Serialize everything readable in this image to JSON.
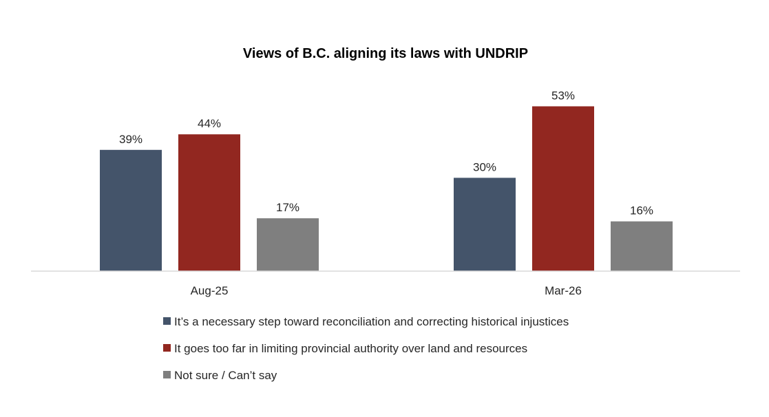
{
  "chart_data": {
    "type": "bar",
    "title": "Views of B.C. aligning its laws with UNDRIP",
    "categories": [
      "Aug-25",
      "Mar-26"
    ],
    "series": [
      {
        "name": "It’s a necessary step toward reconciliation and correcting historical injustices",
        "color": "#44546A",
        "values": [
          39,
          30
        ],
        "labels": [
          "39%",
          "30%"
        ]
      },
      {
        "name": "It goes too far in limiting provincial authority over land and resources",
        "color": "#922720",
        "values": [
          44,
          53
        ],
        "labels": [
          "44%",
          "53%"
        ]
      },
      {
        "name": "Not sure / Can’t say",
        "color": "#7F7F7F",
        "values": [
          17,
          16
        ],
        "labels": [
          "17%",
          "16%"
        ]
      }
    ],
    "xlabel": "",
    "ylabel": "",
    "ylim": [
      0,
      54
    ],
    "value_suffix": "%",
    "grid": false,
    "legend_position": "bottom"
  }
}
